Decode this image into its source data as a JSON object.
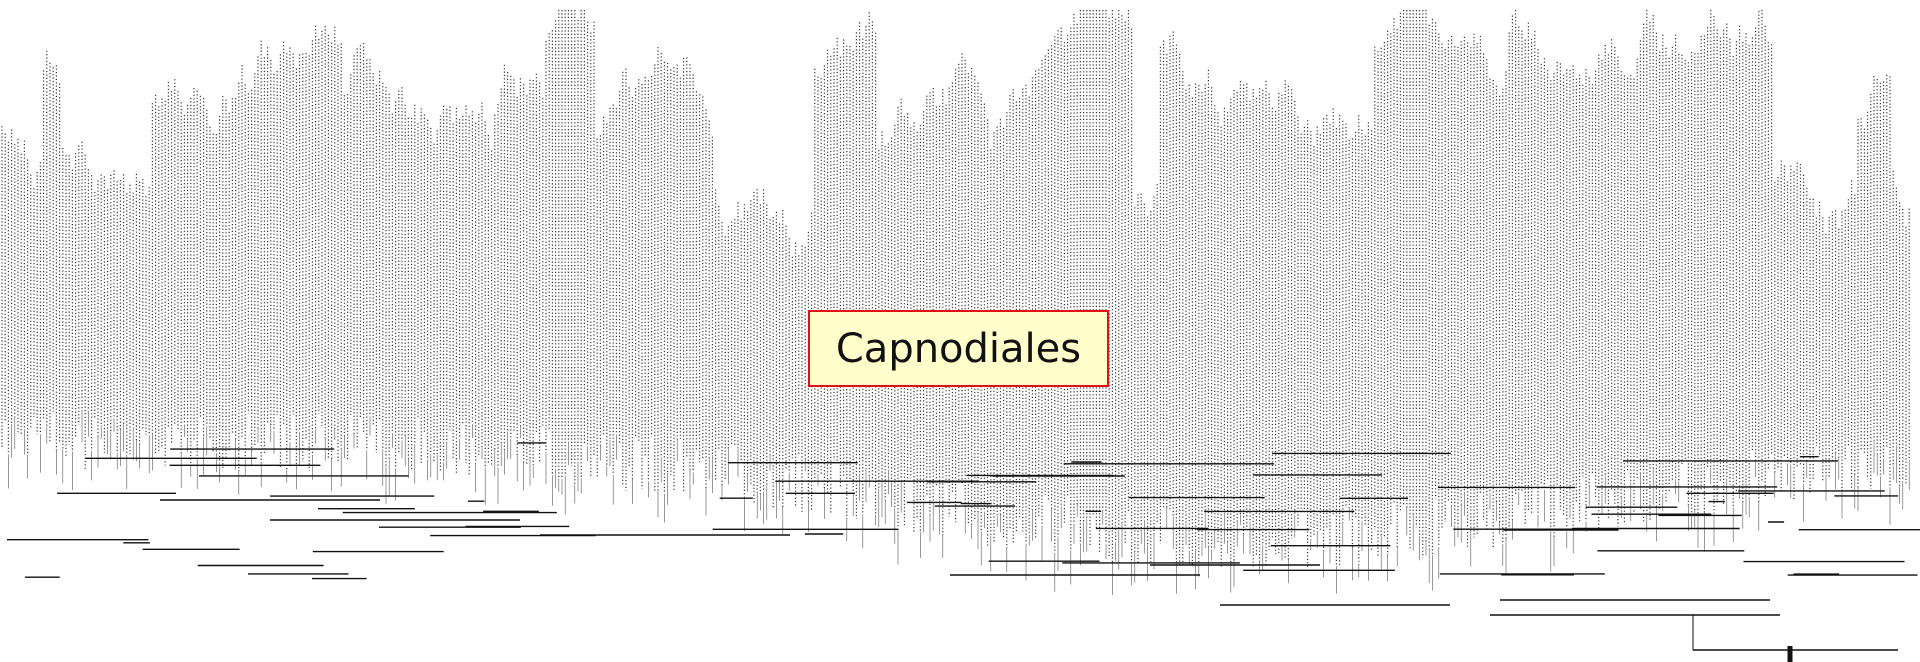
{
  "label": "Capnodiales"
}
